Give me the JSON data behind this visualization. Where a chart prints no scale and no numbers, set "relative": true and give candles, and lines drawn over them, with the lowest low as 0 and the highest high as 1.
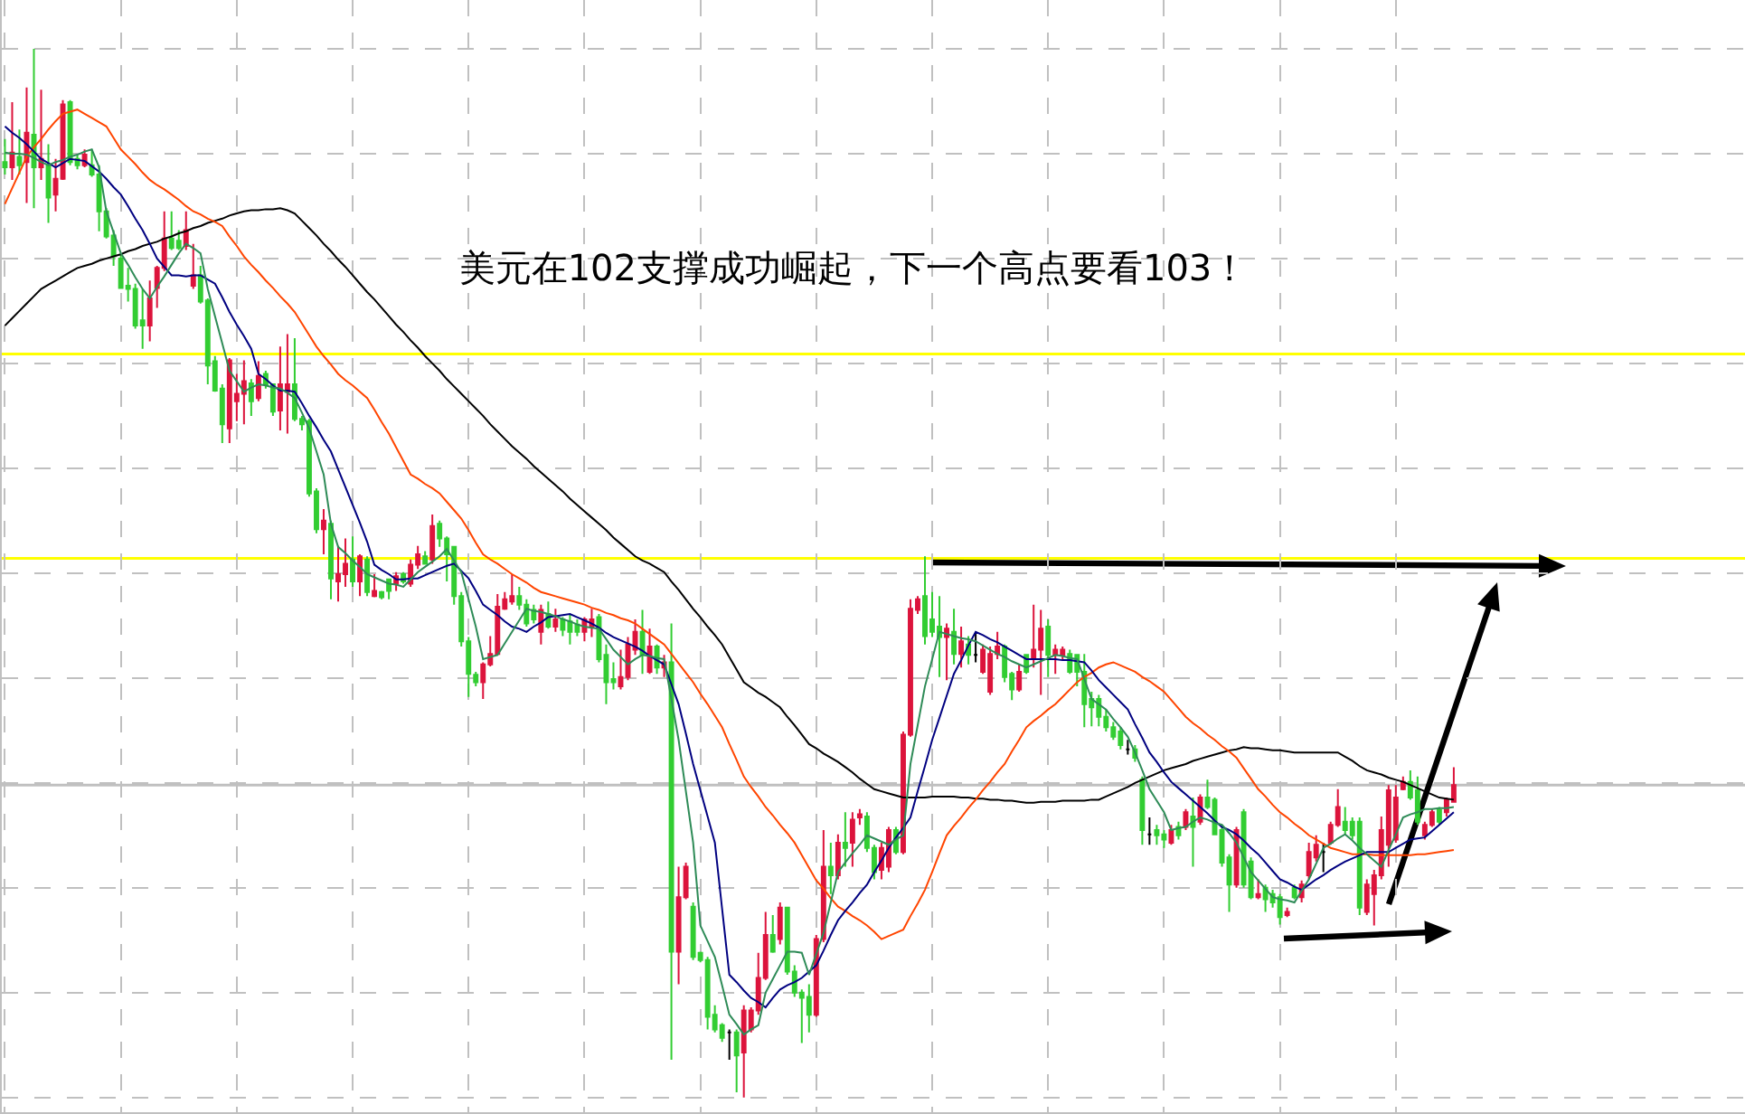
{
  "chart_data": {
    "type": "candlestick",
    "title": "美元在102支撑成功崛起，下一个高点要看103！",
    "relative": true,
    "grid": true,
    "categories": [
      null,
      null,
      null,
      null,
      null,
      null,
      null,
      null,
      null,
      null,
      null,
      null,
      null,
      null,
      null,
      null,
      null,
      null,
      null,
      null,
      null,
      null,
      null,
      null,
      null,
      null,
      null,
      null,
      null,
      null,
      null,
      null,
      null,
      null,
      null,
      null,
      null,
      null,
      null,
      null,
      null,
      null,
      null,
      null,
      null,
      null,
      null,
      null,
      null,
      null,
      null,
      null,
      null,
      null,
      null,
      null,
      null,
      null,
      null,
      null,
      null,
      null,
      null,
      null,
      null,
      null,
      null,
      null,
      null,
      null,
      null,
      null,
      null,
      null,
      null,
      null,
      null,
      null,
      null,
      null,
      null,
      null,
      null,
      null,
      null,
      null,
      null,
      null,
      null,
      null,
      null,
      null,
      null,
      null,
      null,
      null,
      null,
      null,
      null,
      null,
      null,
      null,
      null,
      null,
      null,
      null,
      null,
      null,
      null,
      null,
      null,
      null,
      null,
      null,
      null,
      null,
      null,
      null,
      null,
      null,
      null,
      null,
      null,
      null,
      null,
      null,
      null,
      null,
      null,
      null,
      null,
      null,
      null,
      null,
      null,
      null,
      null,
      null,
      null,
      null,
      null,
      null,
      null,
      null,
      null,
      null,
      null,
      null,
      null,
      null,
      null,
      null,
      null,
      null,
      null,
      null,
      null,
      null,
      null,
      null,
      null,
      null,
      null,
      null,
      null,
      null,
      null,
      null,
      null,
      null,
      null,
      null,
      null,
      null,
      null,
      null,
      null,
      null,
      null,
      null,
      null,
      null,
      null,
      null,
      null,
      null,
      null,
      null,
      null,
      null,
      null,
      null,
      null,
      null,
      null,
      null,
      null,
      null,
      null,
      null,
      null
    ],
    "ohlc": [
      [
        0.892,
        0.914,
        0.88,
        0.887
      ],
      [
        0.887,
        0.949,
        0.875,
        0.901
      ],
      [
        0.897,
        0.923,
        0.88,
        0.889
      ],
      [
        0.892,
        0.963,
        0.853,
        0.92
      ],
      [
        0.918,
        1,
        0.848,
        0.887
      ],
      [
        0.887,
        0.961,
        0.875,
        0.895
      ],
      [
        0.889,
        0.909,
        0.834,
        0.858
      ],
      [
        0.861,
        0.895,
        0.845,
        0.876
      ],
      [
        0.876,
        0.951,
        0.875,
        0.947
      ],
      [
        0.949,
        0.951,
        0.889,
        0.892
      ],
      [
        0.895,
        0.899,
        0.885,
        0.889
      ],
      [
        0.889,
        0.904,
        0.887,
        0.899
      ],
      [
        0.889,
        0.904,
        0.878,
        0.88
      ],
      [
        0.88,
        0.889,
        0.826,
        0.845
      ],
      [
        0.845,
        0.848,
        0.819,
        0.821
      ],
      [
        0.822,
        0.827,
        0.793,
        0.802
      ],
      [
        0.8,
        0.805,
        0.771,
        0.772
      ],
      [
        0.774,
        0.791,
        0.759,
        0.771
      ],
      [
        0.771,
        0.776,
        0.733,
        0.736
      ],
      [
        0.741,
        0.771,
        0.714,
        0.736
      ],
      [
        0.736,
        0.779,
        0.721,
        0.762
      ],
      [
        0.772,
        0.793,
        0.753,
        0.791
      ],
      [
        0.791,
        0.845,
        0.788,
        0.819
      ],
      [
        0.819,
        0.845,
        0.808,
        0.81
      ],
      [
        0.817,
        0.827,
        0.808,
        0.81
      ],
      [
        0.812,
        0.845,
        0.808,
        0.827
      ],
      [
        0.774,
        0.814,
        0.771,
        0.784
      ],
      [
        0.784,
        0.793,
        0.757,
        0.759
      ],
      [
        0.76,
        0.762,
        0.68,
        0.698
      ],
      [
        0.702,
        0.707,
        0.673,
        0.674
      ],
      [
        0.676,
        0.68,
        0.624,
        0.642
      ],
      [
        0.638,
        0.705,
        0.624,
        0.703
      ],
      [
        0.664,
        0.69,
        0.645,
        0.671
      ],
      [
        0.671,
        0.703,
        0.642,
        0.683
      ],
      [
        0.681,
        0.685,
        0.65,
        0.664
      ],
      [
        0.667,
        0.702,
        0.664,
        0.688
      ],
      [
        0.69,
        0.693,
        0.676,
        0.68
      ],
      [
        0.68,
        0.681,
        0.65,
        0.654
      ],
      [
        0.655,
        0.716,
        0.636,
        0.68
      ],
      [
        0.673,
        0.728,
        0.633,
        0.68
      ],
      [
        0.68,
        0.724,
        0.645,
        0.647
      ],
      [
        0.647,
        0.65,
        0.636,
        0.642
      ],
      [
        0.645,
        0.647,
        0.573,
        0.576
      ],
      [
        0.578,
        0.581,
        0.538,
        0.542
      ],
      [
        0.542,
        0.561,
        0.518,
        0.55
      ],
      [
        0.547,
        0.55,
        0.475,
        0.495
      ],
      [
        0.492,
        0.526,
        0.473,
        0.499
      ],
      [
        0.499,
        0.533,
        0.487,
        0.509
      ],
      [
        0.513,
        0.535,
        0.487,
        0.492
      ],
      [
        0.492,
        0.518,
        0.478,
        0.516
      ],
      [
        0.513,
        0.516,
        0.478,
        0.482
      ],
      [
        0.478,
        0.499,
        0.477,
        0.483
      ],
      [
        0.482,
        0.483,
        0.475,
        0.477
      ],
      [
        0.494,
        0.495,
        0.475,
        0.483
      ],
      [
        0.49,
        0.501,
        0.483,
        0.497
      ],
      [
        0.499,
        0.501,
        0.49,
        0.492
      ],
      [
        0.49,
        0.513,
        0.487,
        0.508
      ],
      [
        0.508,
        0.526,
        0.504,
        0.518
      ],
      [
        0.516,
        0.521,
        0.508,
        0.509
      ],
      [
        0.513,
        0.556,
        0.509,
        0.545
      ],
      [
        0.547,
        0.55,
        0.525,
        0.533
      ],
      [
        0.533,
        0.535,
        0.492,
        0.518
      ],
      [
        0.525,
        0.526,
        0.47,
        0.478
      ],
      [
        0.478,
        0.482,
        0.43,
        0.435
      ],
      [
        0.435,
        0.439,
        0.382,
        0.404
      ],
      [
        0.403,
        0.406,
        0.392,
        0.396
      ],
      [
        0.396,
        0.415,
        0.38,
        0.413
      ],
      [
        0.413,
        0.44,
        0.411,
        0.423
      ],
      [
        0.423,
        0.48,
        0.422,
        0.468
      ],
      [
        0.466,
        0.482,
        0.465,
        0.475
      ],
      [
        0.473,
        0.499,
        0.47,
        0.478
      ],
      [
        0.478,
        0.487,
        0.465,
        0.47
      ],
      [
        0.47,
        0.475,
        0.449,
        0.452
      ],
      [
        0.465,
        0.47,
        0.452,
        0.456
      ],
      [
        0.444,
        0.47,
        0.432,
        0.465
      ],
      [
        0.461,
        0.473,
        0.447,
        0.449
      ],
      [
        0.449,
        0.466,
        0.444,
        0.456
      ],
      [
        0.456,
        0.458,
        0.44,
        0.446
      ],
      [
        0.454,
        0.461,
        0.432,
        0.444
      ],
      [
        0.451,
        0.456,
        0.44,
        0.444
      ],
      [
        0.444,
        0.458,
        0.435,
        0.456
      ],
      [
        0.449,
        0.466,
        0.439,
        0.456
      ],
      [
        0.458,
        0.461,
        0.415,
        0.418
      ],
      [
        0.422,
        0.432,
        0.375,
        0.396
      ],
      [
        0.399,
        0.415,
        0.389,
        0.396
      ],
      [
        0.392,
        0.427,
        0.389,
        0.401
      ],
      [
        0.401,
        0.439,
        0.398,
        0.432
      ],
      [
        0.427,
        0.456,
        0.422,
        0.444
      ],
      [
        0.444,
        0.465,
        0.404,
        0.422
      ],
      [
        0.406,
        0.447,
        0.404,
        0.43
      ],
      [
        0.43,
        0.432,
        0.404,
        0.41
      ],
      [
        0.41,
        0.422,
        0.401,
        0.415
      ],
      [
        0.415,
        0.452,
        0.036,
        0.139
      ],
      [
        0.139,
        0.22,
        0.108,
        0.191
      ],
      [
        0.191,
        0.224,
        0.189,
        0.22
      ],
      [
        0.182,
        0.186,
        0.131,
        0.134
      ],
      [
        0.138,
        0.139,
        0.129,
        0.131
      ],
      [
        0.131,
        0.134,
        0.065,
        0.077
      ],
      [
        0.079,
        0.088,
        0.062,
        0.065
      ],
      [
        0.069,
        0.071,
        0.053,
        0.057
      ],
      [
        0.062,
        0.065,
        0.036,
        0.062
      ],
      [
        0.062,
        0.065,
        0.005,
        0.04
      ],
      [
        0.043,
        0.088,
        0,
        0.083
      ],
      [
        0.065,
        0.086,
        0.062,
        0.083
      ],
      [
        0.083,
        0.138,
        0.079,
        0.114
      ],
      [
        0.114,
        0.177,
        0.112,
        0.155
      ],
      [
        0.155,
        0.174,
        0.138,
        0.139
      ],
      [
        0.151,
        0.186,
        0.146,
        0.181
      ],
      [
        0.181,
        0.182,
        0.117,
        0.12
      ],
      [
        0.12,
        0.126,
        0.096,
        0.1
      ],
      [
        0.1,
        0.103,
        0.052,
        0.095
      ],
      [
        0.096,
        0.108,
        0.062,
        0.079
      ],
      [
        0.079,
        0.155,
        0.077,
        0.151
      ],
      [
        0.151,
        0.255,
        0.148,
        0.22
      ],
      [
        0.22,
        0.243,
        0.194,
        0.212
      ],
      [
        0.212,
        0.251,
        0.208,
        0.243
      ],
      [
        0.243,
        0.272,
        0.22,
        0.238
      ],
      [
        0.243,
        0.272,
        0.22,
        0.265
      ],
      [
        0.267,
        0.275,
        0.26,
        0.27
      ],
      [
        0.268,
        0.272,
        0.234,
        0.238
      ],
      [
        0.238,
        0.241,
        0.208,
        0.215
      ],
      [
        0.217,
        0.243,
        0.208,
        0.238
      ],
      [
        0.22,
        0.258,
        0.215,
        0.255
      ],
      [
        0.255,
        0.258,
        0.232,
        0.234
      ],
      [
        0.234,
        0.349,
        0.232,
        0.346
      ],
      [
        0.346,
        0.475,
        0.344,
        0.466
      ],
      [
        0.465,
        0.478,
        0.461,
        0.475
      ],
      [
        0.478,
        0.516,
        0.432,
        0.44
      ],
      [
        0.456,
        0.482,
        0.439,
        0.444
      ],
      [
        0.449,
        0.478,
        0.401,
        0.439
      ],
      [
        0.439,
        0.452,
        0.398,
        0.447
      ],
      [
        0.444,
        0.466,
        0.413,
        0.423
      ],
      [
        0.423,
        0.449,
        0.41,
        0.435
      ],
      [
        0.432,
        0.44,
        0.413,
        0.422
      ],
      [
        0.422,
        0.444,
        0.415,
        0.422
      ],
      [
        0.406,
        0.432,
        0.404,
        0.427
      ],
      [
        0.387,
        0.43,
        0.384,
        0.423
      ],
      [
        0.423,
        0.444,
        0.418,
        0.43
      ],
      [
        0.43,
        0.432,
        0.396,
        0.401
      ],
      [
        0.404,
        0.406,
        0.379,
        0.389
      ],
      [
        0.389,
        0.413,
        0.387,
        0.406
      ],
      [
        0.422,
        0.423,
        0.404,
        0.406
      ],
      [
        0.418,
        0.47,
        0.41,
        0.427
      ],
      [
        0.427,
        0.465,
        0.384,
        0.447
      ],
      [
        0.449,
        0.456,
        0.401,
        0.422
      ],
      [
        0.422,
        0.432,
        0.404,
        0.427
      ],
      [
        0.422,
        0.43,
        0.418,
        0.427
      ],
      [
        0.423,
        0.427,
        0.404,
        0.406
      ],
      [
        0.422,
        0.423,
        0.392,
        0.406
      ],
      [
        0.406,
        0.423,
        0.353,
        0.375
      ],
      [
        0.38,
        0.387,
        0.354,
        0.372
      ],
      [
        0.38,
        0.384,
        0.354,
        0.363
      ],
      [
        0.363,
        0.37,
        0.349,
        0.353
      ],
      [
        0.353,
        0.358,
        0.341,
        0.344
      ],
      [
        0.349,
        0.353,
        0.332,
        0.336
      ],
      [
        0.332,
        0.341,
        0.327,
        0.332
      ],
      [
        0.332,
        0.336,
        0.32,
        0.324
      ],
      [
        0.303,
        0.306,
        0.241,
        0.255
      ],
      [
        0.251,
        0.267,
        0.241,
        0.251
      ],
      [
        0.255,
        0.26,
        0.241,
        0.25
      ],
      [
        0.251,
        0.255,
        0.238,
        0.246
      ],
      [
        0.243,
        0.26,
        0.241,
        0.255
      ],
      [
        0.258,
        0.263,
        0.246,
        0.25
      ],
      [
        0.258,
        0.275,
        0.255,
        0.272
      ],
      [
        0.268,
        0.286,
        0.22,
        0.258
      ],
      [
        0.263,
        0.289,
        0.26,
        0.286
      ],
      [
        0.286,
        0.303,
        0.275,
        0.277
      ],
      [
        0.284,
        0.286,
        0.25,
        0.251
      ],
      [
        0.255,
        0.258,
        0.22,
        0.224
      ],
      [
        0.229,
        0.232,
        0.177,
        0.203
      ],
      [
        0.203,
        0.258,
        0.2,
        0.255
      ],
      [
        0.272,
        0.275,
        0.2,
        0.203
      ],
      [
        0.225,
        0.229,
        0.189,
        0.191
      ],
      [
        0.191,
        0.208,
        0.189,
        0.194
      ],
      [
        0.2,
        0.203,
        0.177,
        0.189
      ],
      [
        0.194,
        0.198,
        0.181,
        0.186
      ],
      [
        0.191,
        0.194,
        0.165,
        0.172
      ],
      [
        0.174,
        0.181,
        0.172,
        0.177
      ],
      [
        0.2,
        0.203,
        0.189,
        0.191
      ],
      [
        0.191,
        0.207,
        0.186,
        0.203
      ],
      [
        0.212,
        0.243,
        0.208,
        0.234
      ],
      [
        0.229,
        0.25,
        0.225,
        0.241
      ],
      [
        0.234,
        0.243,
        0.215,
        0.234
      ],
      [
        0.243,
        0.263,
        0.241,
        0.26
      ],
      [
        0.26,
        0.294,
        0.258,
        0.277
      ],
      [
        0.263,
        0.277,
        0.25,
        0.255
      ],
      [
        0.263,
        0.267,
        0.246,
        0.25
      ],
      [
        0.263,
        0.267,
        0.174,
        0.181
      ],
      [
        0.177,
        0.208,
        0.174,
        0.203
      ],
      [
        0.194,
        0.217,
        0.164,
        0.212
      ],
      [
        0.212,
        0.268,
        0.208,
        0.255
      ],
      [
        0.241,
        0.298,
        0.22,
        0.293
      ],
      [
        0.246,
        0.298,
        0.243,
        0.286
      ],
      [
        0.294,
        0.306,
        0.293,
        0.301
      ],
      [
        0.301,
        0.312,
        0.284,
        0.286
      ],
      [
        0.293,
        0.306,
        0.26,
        0.263
      ],
      [
        0.25,
        0.263,
        0.246,
        0.26
      ],
      [
        0.26,
        0.275,
        0.258,
        0.272
      ],
      [
        0.274,
        0.277,
        0.26,
        0.263
      ],
      [
        0.272,
        0.286,
        0.268,
        0.284
      ],
      [
        0.282,
        0.315,
        0.281,
        0.298
      ]
    ],
    "colors": [
      "#32cd32",
      "#dc143c",
      "#32cd32",
      "#dc143c",
      "#32cd32",
      "#dc143c",
      "#32cd32",
      "#dc143c",
      "#dc143c",
      "#32cd32",
      "#32cd32",
      "#dc143c",
      "#32cd32",
      "#32cd32",
      "#32cd32",
      "#32cd32",
      "#32cd32",
      "#32cd32",
      "#32cd32",
      "#32cd32",
      "#dc143c",
      "#dc143c",
      "#dc143c",
      "#32cd32",
      "#32cd32",
      "#dc143c",
      "#dc143c",
      "#32cd32",
      "#32cd32",
      "#32cd32",
      "#32cd32",
      "#dc143c",
      "#dc143c",
      "#dc143c",
      "#32cd32",
      "#dc143c",
      "#32cd32",
      "#32cd32",
      "#dc143c",
      "#dc143c",
      "#32cd32",
      "#32cd32",
      "#32cd32",
      "#32cd32",
      "#dc143c",
      "#32cd32",
      "#dc143c",
      "#dc143c",
      "#32cd32",
      "#dc143c",
      "#32cd32",
      "#dc143c",
      "#32cd32",
      "#32cd32",
      "#dc143c",
      "#32cd32",
      "#dc143c",
      "#dc143c",
      "#32cd32",
      "#dc143c",
      "#32cd32",
      "#32cd32",
      "#32cd32",
      "#32cd32",
      "#32cd32",
      "#32cd32",
      "#dc143c",
      "#dc143c",
      "#dc143c",
      "#dc143c",
      "#dc143c",
      "#32cd32",
      "#32cd32",
      "#32cd32",
      "#dc143c",
      "#32cd32",
      "#dc143c",
      "#32cd32",
      "#32cd32",
      "#32cd32",
      "#dc143c",
      "#dc143c",
      "#32cd32",
      "#32cd32",
      "#32cd32",
      "#dc143c",
      "#dc143c",
      "#dc143c",
      "#32cd32",
      "#dc143c",
      "#32cd32",
      "#dc143c",
      "#32cd32",
      "#dc143c",
      "#dc143c",
      "#32cd32",
      "#32cd32",
      "#32cd32",
      "#32cd32",
      "#32cd32",
      "#000000",
      "#32cd32",
      "#dc143c",
      "#dc143c",
      "#dc143c",
      "#dc143c",
      "#32cd32",
      "#dc143c",
      "#32cd32",
      "#32cd32",
      "#32cd32",
      "#32cd32",
      "#dc143c",
      "#dc143c",
      "#32cd32",
      "#dc143c",
      "#32cd32",
      "#dc143c",
      "#dc143c",
      "#32cd32",
      "#32cd32",
      "#dc143c",
      "#dc143c",
      "#32cd32",
      "#dc143c",
      "#dc143c",
      "#dc143c",
      "#32cd32",
      "#32cd32",
      "#32cd32",
      "#dc143c",
      "#32cd32",
      "#dc143c",
      "#32cd32",
      "#000000",
      "#dc143c",
      "#dc143c",
      "#dc143c",
      "#32cd32",
      "#32cd32",
      "#dc143c",
      "#32cd32",
      "#dc143c",
      "#dc143c",
      "#32cd32",
      "#dc143c",
      "#dc143c",
      "#32cd32",
      "#32cd32",
      "#32cd32",
      "#32cd32",
      "#32cd32",
      "#32cd32",
      "#32cd32",
      "#32cd32",
      "#000000",
      "#32cd32",
      "#32cd32",
      "#000000",
      "#32cd32",
      "#32cd32",
      "#dc143c",
      "#32cd32",
      "#dc143c",
      "#32cd32",
      "#dc143c",
      "#32cd32",
      "#32cd32",
      "#32cd32",
      "#32cd32",
      "#dc143c",
      "#32cd32",
      "#32cd32",
      "#dc143c",
      "#32cd32",
      "#32cd32",
      "#32cd32",
      "#dc143c",
      "#32cd32",
      "#dc143c",
      "#dc143c",
      "#dc143c",
      "#000000",
      "#dc143c",
      "#dc143c",
      "#32cd32",
      "#32cd32",
      "#32cd32",
      "#dc143c",
      "#dc143c",
      "#dc143c",
      "#dc143c",
      "#dc143c",
      "#dc143c",
      "#32cd32",
      "#32cd32",
      "#dc143c",
      "#dc143c",
      "#32cd32",
      "#dc143c",
      "#dc143c"
    ],
    "series": [
      {
        "type": "line",
        "color": "#000000",
        "values": [
          0.736,
          0.743,
          0.75,
          0.757,
          0.764,
          0.771,
          0.775,
          0.779,
          0.783,
          0.787,
          0.791,
          0.793,
          0.795,
          0.798,
          0.8,
          0.802,
          0.804,
          0.807,
          0.809,
          0.812,
          0.814,
          0.816,
          0.819,
          0.821,
          0.824,
          0.826,
          0.829,
          0.831,
          0.834,
          0.836,
          0.838,
          0.841,
          0.843,
          0.845,
          0.846,
          0.846,
          0.847,
          0.847,
          0.848,
          0.846,
          0.843,
          0.836,
          0.829,
          0.822,
          0.814,
          0.807,
          0.799,
          0.792,
          0.784,
          0.776,
          0.768,
          0.761,
          0.753,
          0.745,
          0.737,
          0.73,
          0.722,
          0.715,
          0.707,
          0.7,
          0.693,
          0.685,
          0.678,
          0.671,
          0.664,
          0.657,
          0.65,
          0.642,
          0.635,
          0.628,
          0.621,
          0.615,
          0.609,
          0.602,
          0.596,
          0.59,
          0.584,
          0.578,
          0.571,
          0.565,
          0.559,
          0.553,
          0.547,
          0.541,
          0.534,
          0.528,
          0.522,
          0.516,
          0.512,
          0.509,
          0.505,
          0.501,
          0.492,
          0.484,
          0.475,
          0.466,
          0.458,
          0.449,
          0.441,
          0.432,
          0.42,
          0.408,
          0.396,
          0.391,
          0.386,
          0.382,
          0.377,
          0.372,
          0.363,
          0.355,
          0.346,
          0.337,
          0.333,
          0.328,
          0.324,
          0.32,
          0.315,
          0.31,
          0.304,
          0.299,
          0.294,
          0.292,
          0.29,
          0.288,
          0.286,
          0.286,
          0.286,
          0.286,
          0.287,
          0.287,
          0.287,
          0.287,
          0.286,
          0.286,
          0.285,
          0.285,
          0.284,
          0.284,
          0.283,
          0.283,
          0.282,
          0.281,
          0.281,
          0.282,
          0.282,
          0.282,
          0.283,
          0.283,
          0.283,
          0.283,
          0.284,
          0.284,
          0.287,
          0.29,
          0.293,
          0.296,
          0.3,
          0.303,
          0.306,
          0.309,
          0.312,
          0.314,
          0.316,
          0.318,
          0.321,
          0.323,
          0.325,
          0.327,
          0.329,
          0.331,
          0.332,
          0.334,
          0.333,
          0.333,
          0.332,
          0.331,
          0.331,
          0.33,
          0.329,
          0.329,
          0.329,
          0.329,
          0.329,
          0.329,
          0.329,
          0.325,
          0.321,
          0.316,
          0.312,
          0.31,
          0.308,
          0.305,
          0.303,
          0.301,
          0.298,
          0.295,
          0.292,
          0.289,
          0.286,
          0.285,
          0.284
        ]
      },
      {
        "type": "line",
        "color": "#ff4500",
        "values": [
          0.852,
          0.867,
          0.882,
          0.897,
          0.906,
          0.914,
          0.923,
          0.931,
          0.938,
          0.94,
          0.942,
          0.938,
          0.934,
          0.93,
          0.926,
          0.915,
          0.904,
          0.897,
          0.89,
          0.882,
          0.875,
          0.87,
          0.866,
          0.861,
          0.856,
          0.85,
          0.845,
          0.842,
          0.838,
          0.835,
          0.831,
          0.821,
          0.812,
          0.802,
          0.794,
          0.787,
          0.779,
          0.772,
          0.764,
          0.757,
          0.749,
          0.738,
          0.727,
          0.716,
          0.707,
          0.699,
          0.69,
          0.684,
          0.679,
          0.673,
          0.667,
          0.656,
          0.644,
          0.633,
          0.62,
          0.607,
          0.594,
          0.59,
          0.585,
          0.581,
          0.576,
          0.568,
          0.56,
          0.552,
          0.541,
          0.529,
          0.518,
          0.513,
          0.509,
          0.504,
          0.499,
          0.495,
          0.491,
          0.486,
          0.482,
          0.48,
          0.478,
          0.476,
          0.474,
          0.472,
          0.47,
          0.467,
          0.465,
          0.462,
          0.46,
          0.457,
          0.455,
          0.452,
          0.447,
          0.442,
          0.437,
          0.432,
          0.423,
          0.414,
          0.405,
          0.396,
          0.385,
          0.375,
          0.364,
          0.353,
          0.337,
          0.322,
          0.306,
          0.296,
          0.287,
          0.277,
          0.269,
          0.26,
          0.252,
          0.243,
          0.231,
          0.219,
          0.207,
          0.199,
          0.19,
          0.182,
          0.178,
          0.173,
          0.169,
          0.164,
          0.158,
          0.151,
          0.154,
          0.157,
          0.16,
          0.173,
          0.185,
          0.198,
          0.215,
          0.233,
          0.25,
          0.259,
          0.267,
          0.276,
          0.284,
          0.293,
          0.301,
          0.31,
          0.318,
          0.33,
          0.341,
          0.353,
          0.359,
          0.364,
          0.37,
          0.375,
          0.382,
          0.389,
          0.396,
          0.401,
          0.405,
          0.41,
          0.413,
          0.415,
          0.412,
          0.409,
          0.406,
          0.401,
          0.397,
          0.392,
          0.387,
          0.379,
          0.371,
          0.363,
          0.357,
          0.352,
          0.346,
          0.341,
          0.335,
          0.33,
          0.324,
          0.314,
          0.304,
          0.294,
          0.287,
          0.279,
          0.272,
          0.267,
          0.261,
          0.256,
          0.25,
          0.246,
          0.242,
          0.238,
          0.236,
          0.234,
          0.232,
          0.232,
          0.232,
          0.231,
          0.231,
          0.231,
          0.231,
          0.231,
          0.231,
          0.232,
          0.232,
          0.233,
          0.234,
          0.235,
          0.236
        ]
      },
      {
        "type": "line",
        "color": "#000080",
        "values": [
          0.926,
          0.92,
          0.915,
          0.909,
          0.902,
          0.895,
          0.891,
          0.887,
          0.891,
          0.895,
          0.894,
          0.893,
          0.888,
          0.883,
          0.876,
          0.868,
          0.861,
          0.85,
          0.838,
          0.827,
          0.814,
          0.8,
          0.792,
          0.784,
          0.784,
          0.783,
          0.784,
          0.784,
          0.78,
          0.776,
          0.763,
          0.749,
          0.737,
          0.726,
          0.714,
          0.69,
          0.685,
          0.679,
          0.674,
          0.674,
          0.673,
          0.662,
          0.65,
          0.639,
          0.627,
          0.616,
          0.599,
          0.582,
          0.565,
          0.548,
          0.53,
          0.508,
          0.503,
          0.499,
          0.494,
          0.494,
          0.495,
          0.495,
          0.498,
          0.501,
          0.504,
          0.507,
          0.509,
          0.502,
          0.495,
          0.483,
          0.47,
          0.465,
          0.46,
          0.454,
          0.449,
          0.447,
          0.444,
          0.449,
          0.453,
          0.458,
          0.459,
          0.46,
          0.461,
          0.458,
          0.455,
          0.452,
          0.448,
          0.443,
          0.439,
          0.436,
          0.433,
          0.43,
          0.426,
          0.421,
          0.417,
          0.413,
          0.394,
          0.375,
          0.347,
          0.318,
          0.293,
          0.268,
          0.243,
          0.18,
          0.117,
          0.11,
          0.102,
          0.095,
          0.091,
          0.086,
          0.095,
          0.103,
          0.107,
          0.11,
          0.114,
          0.12,
          0.126,
          0.14,
          0.155,
          0.169,
          0.178,
          0.186,
          0.195,
          0.203,
          0.215,
          0.226,
          0.238,
          0.248,
          0.257,
          0.267,
          0.292,
          0.316,
          0.341,
          0.362,
          0.383,
          0.404,
          0.417,
          0.431,
          0.444,
          0.441,
          0.437,
          0.434,
          0.43,
          0.426,
          0.422,
          0.418,
          0.418,
          0.418,
          0.418,
          0.418,
          0.417,
          0.417,
          0.416,
          0.415,
          0.407,
          0.398,
          0.391,
          0.384,
          0.377,
          0.37,
          0.356,
          0.343,
          0.329,
          0.32,
          0.31,
          0.301,
          0.295,
          0.289,
          0.283,
          0.277,
          0.271,
          0.264,
          0.258,
          0.255,
          0.251,
          0.245,
          0.238,
          0.232,
          0.224,
          0.216,
          0.208,
          0.205,
          0.201,
          0.198,
          0.203,
          0.208,
          0.212,
          0.217,
          0.221,
          0.225,
          0.228,
          0.231,
          0.234,
          0.234,
          0.234,
          0.234,
          0.238,
          0.242,
          0.246,
          0.247,
          0.248,
          0.254,
          0.26,
          0.266,
          0.272
        ]
      },
      {
        "type": "line",
        "color": "#2e8b57",
        "values": [
          0.901,
          0.9,
          0.9,
          0.899,
          0.896,
          0.892,
          0.889,
          0.892,
          0.894,
          0.897,
          0.899,
          0.902,
          0.904,
          0.887,
          0.845,
          0.825,
          0.805,
          0.794,
          0.782,
          0.771,
          0.762,
          0.773,
          0.783,
          0.794,
          0.805,
          0.814,
          0.81,
          0.805,
          0.771,
          0.745,
          0.719,
          0.693,
          0.683,
          0.673,
          0.677,
          0.68,
          0.679,
          0.677,
          0.676,
          0.672,
          0.667,
          0.653,
          0.638,
          0.616,
          0.594,
          0.547,
          0.525,
          0.519,
          0.512,
          0.506,
          0.499,
          0.496,
          0.493,
          0.49,
          0.489,
          0.487,
          0.494,
          0.501,
          0.506,
          0.511,
          0.516,
          0.523,
          0.512,
          0.501,
          0.475,
          0.449,
          0.418,
          0.42,
          0.422,
          0.433,
          0.444,
          0.455,
          0.466,
          0.464,
          0.463,
          0.461,
          0.459,
          0.456,
          0.454,
          0.451,
          0.449,
          0.448,
          0.447,
          0.437,
          0.427,
          0.42,
          0.413,
          0.418,
          0.422,
          0.421,
          0.419,
          0.418,
          0.38,
          0.341,
          0.292,
          0.243,
          0.164,
          0.149,
          0.134,
          0.107,
          0.079,
          0.07,
          0.06,
          0.065,
          0.069,
          0.1,
          0.113,
          0.126,
          0.139,
          0.139,
          0.138,
          0.117,
          0.137,
          0.157,
          0.186,
          0.215,
          0.224,
          0.233,
          0.241,
          0.25,
          0.247,
          0.244,
          0.241,
          0.246,
          0.25,
          0.318,
          0.355,
          0.392,
          0.418,
          0.444,
          0.442,
          0.44,
          0.438,
          0.437,
          0.435,
          0.431,
          0.427,
          0.423,
          0.42,
          0.416,
          0.413,
          0.41,
          0.413,
          0.416,
          0.419,
          0.422,
          0.421,
          0.419,
          0.418,
          0.399,
          0.38,
          0.375,
          0.37,
          0.361,
          0.353,
          0.344,
          0.329,
          0.312,
          0.294,
          0.283,
          0.272,
          0.255,
          0.257,
          0.258,
          0.263,
          0.267,
          0.265,
          0.262,
          0.26,
          0.252,
          0.243,
          0.229,
          0.215,
          0.207,
          0.199,
          0.191,
          0.189,
          0.188,
          0.186,
          0.197,
          0.208,
          0.223,
          0.238,
          0.242,
          0.247,
          0.251,
          0.245,
          0.238,
          0.232,
          0.226,
          0.22,
          0.236,
          0.251,
          0.267,
          0.27,
          0.272,
          0.275,
          0.275,
          0.276,
          0.276,
          0.277
        ]
      }
    ],
    "ref_lines": [
      {
        "axis": "y",
        "value": 0.709,
        "color": "#ffff00"
      },
      {
        "axis": "y",
        "value": 0.514,
        "color": "#ffff00"
      },
      {
        "axis": "y",
        "value": 0.298,
        "color": "#c0c0c0"
      }
    ]
  }
}
